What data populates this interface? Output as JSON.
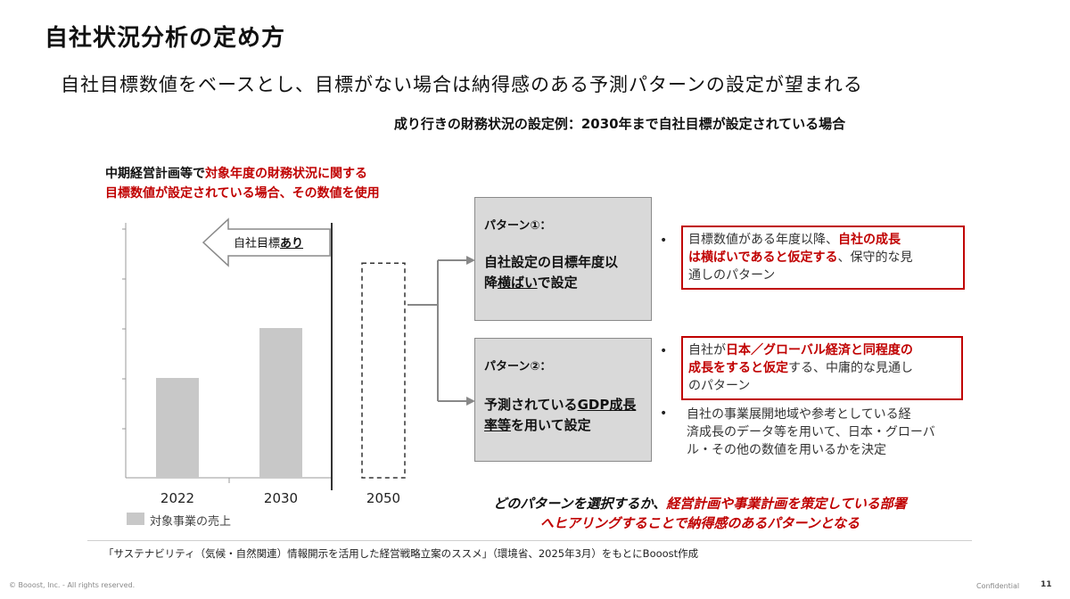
{
  "header": {
    "title": "自社状況分析の定め方",
    "subtitle": "自社目標数値をベースとし、目標がない場合は納得感のある予測パターンの設定が望まれる",
    "example_heading": "成り行きの財務状況の設定例：2030年まで自社目標が設定されている場合"
  },
  "caption": {
    "line1_black": "中期経営計画等で",
    "line1_red": "対象年度の財務状況に関する",
    "line2_red": "目標数値が設定されている場合、その数値を使用"
  },
  "target_arrow": {
    "label_prefix": "自社目標",
    "label_emph": "あり"
  },
  "chart_data": {
    "type": "bar",
    "categories": [
      "2022",
      "2030",
      "2050"
    ],
    "series": [
      {
        "name": "対象事業の売上",
        "values": [
          2,
          3,
          null
        ]
      }
    ],
    "projected_category": "2050",
    "grid": false,
    "legend": "bottom-left"
  },
  "legend": {
    "label": "対象事業の売上"
  },
  "patterns": [
    {
      "head": "パターン①：",
      "body_line1": "自社設定の目標年度以",
      "body_line2_prefix": "降",
      "body_line2_und": "横ばい",
      "body_line2_suffix": "で設定"
    },
    {
      "head": "パターン②：",
      "body_line1_prefix": "予測されている",
      "body_line1_und": "GDP成長",
      "body_line2_und": "率等",
      "body_line2_suffix": "を用いて設定"
    }
  ],
  "descriptions": {
    "d1_a": "目標数値がある年度以降、",
    "d1_b": "自社の成長",
    "d1_c": "は横ばいであると仮定する",
    "d1_d": "、保守的な見",
    "d1_e": "通しのパターン",
    "d2_a": "自社が",
    "d2_b": "日本／グローバル経済と同程度の",
    "d2_c": "成長をすると仮定",
    "d2_d": "する、中庸的な見通し",
    "d2_e": "のパターン",
    "d3_line1": "自社の事業展開地域や参考としている経",
    "d3_line2": "済成長のデータ等を用いて、日本・グローバ",
    "d3_line3": "ル・その他の数値を用いるかを決定"
  },
  "bottom_note": {
    "line1_black": "どのパターンを選択するか、",
    "line1_red": "経営計画や事業計画を策定している部署",
    "line2_red": "へヒアリングすることで納得感のあるパターンとなる"
  },
  "footer": {
    "source": "「サステナビリティ（気候・自然関連）情報開示を活用した経営戦略立案のススメ」（環境省、2025年3月）をもとにBooost作成",
    "copyright": "© Booost, Inc. - All rights reserved.",
    "confidential": "Confidential",
    "page": "11"
  },
  "colors": {
    "accent_red": "#c00000",
    "bar_gray": "#c8c8c8",
    "box_gray": "#d9d9d9"
  }
}
